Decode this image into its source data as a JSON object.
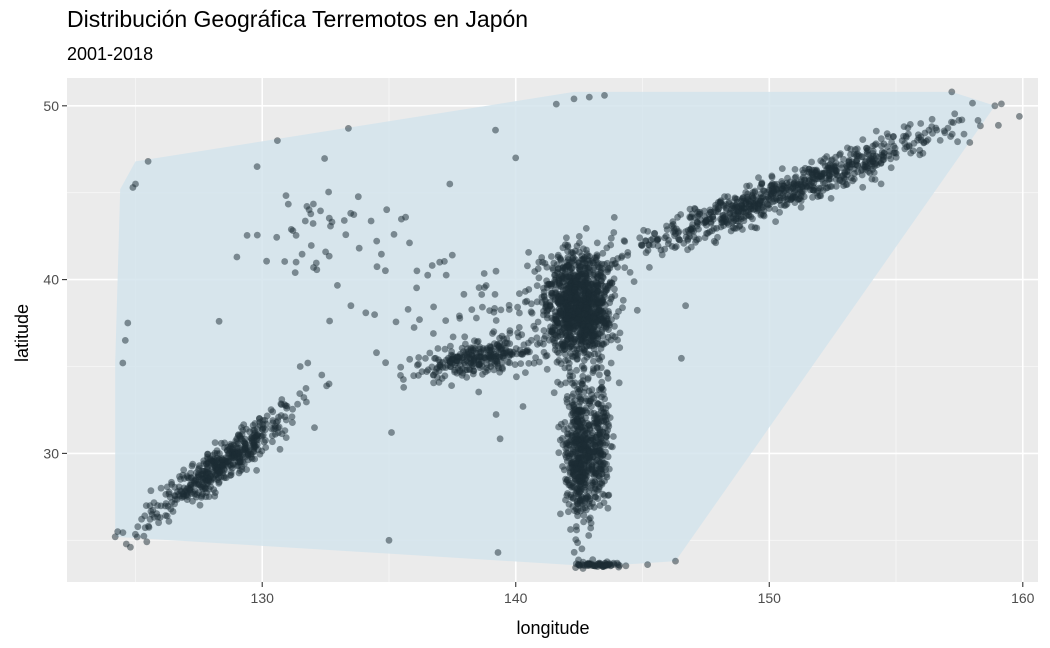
{
  "chart_data": {
    "type": "scatter",
    "title": "Distribución Geográfica Terremotos en Japón",
    "subtitle": "2001-2018",
    "xlabel": "longitude",
    "ylabel": "latitude",
    "xlim": [
      122.3,
      160.6
    ],
    "ylim": [
      22.6,
      51.6
    ],
    "x_ticks": [
      130,
      140,
      150,
      160
    ],
    "y_ticks": [
      30,
      40,
      50
    ],
    "grid": true,
    "point_color": "#1c2b33",
    "point_opacity": 0.5,
    "hull_fill": "#d3e4ec",
    "hull": [
      [
        124.2,
        25.2
      ],
      [
        124.2,
        35.2
      ],
      [
        124.4,
        45.2
      ],
      [
        125.0,
        46.8
      ],
      [
        142.3,
        50.8
      ],
      [
        157.2,
        50.8
      ],
      [
        158.9,
        50.0
      ],
      [
        146.3,
        23.8
      ],
      [
        143.2,
        23.5
      ],
      [
        142.0,
        23.6
      ]
    ],
    "clusters": [
      {
        "center": [
          150.5,
          45.0
        ],
        "spread": [
          7.5,
          0.9
        ],
        "angle": 0.52,
        "count": 750
      },
      {
        "center": [
          142.5,
          38.5
        ],
        "spread": [
          1.3,
          3.0
        ],
        "angle": 0.0,
        "count": 1100
      },
      {
        "center": [
          142.5,
          30.0
        ],
        "spread": [
          0.6,
          4.3
        ],
        "angle": 0.0,
        "count": 450
      },
      {
        "center": [
          143.3,
          30.5
        ],
        "spread": [
          0.5,
          3.8
        ],
        "angle": 0.0,
        "count": 200
      },
      {
        "center": [
          128.5,
          29.5
        ],
        "spread": [
          4.2,
          0.8
        ],
        "angle": 0.85,
        "count": 480
      },
      {
        "center": [
          138.5,
          35.5
        ],
        "spread": [
          2.5,
          0.9
        ],
        "angle": 0.25,
        "count": 250
      },
      {
        "center": [
          139.0,
          37.0
        ],
        "spread": [
          4.5,
          4.5
        ],
        "angle": 0.0,
        "count": 110
      },
      {
        "center": [
          132.0,
          43.0
        ],
        "spread": [
          3.0,
          3.0
        ],
        "angle": 0.0,
        "count": 45
      },
      {
        "center": [
          143.2,
          23.6
        ],
        "spread": [
          0.9,
          0.15
        ],
        "angle": 0.0,
        "count": 60
      }
    ],
    "extra_points": [
      [
        124.5,
        35.2
      ],
      [
        124.6,
        36.5
      ],
      [
        124.7,
        37.5
      ],
      [
        124.9,
        45.3
      ],
      [
        125.0,
        45.5
      ],
      [
        125.5,
        46.8
      ],
      [
        133.4,
        48.7
      ],
      [
        130.6,
        48.0
      ],
      [
        129.8,
        46.5
      ],
      [
        142.9,
        50.5
      ],
      [
        142.3,
        50.4
      ],
      [
        143.5,
        50.6
      ],
      [
        141.6,
        50.1
      ],
      [
        146.3,
        23.8
      ],
      [
        135.0,
        25.0
      ],
      [
        145.2,
        23.6
      ],
      [
        124.2,
        25.2
      ],
      [
        124.3,
        25.5
      ],
      [
        158.9,
        50.0
      ],
      [
        157.2,
        50.8
      ],
      [
        139.2,
        48.6
      ],
      [
        140.0,
        47.0
      ],
      [
        137.4,
        45.5
      ],
      [
        129.0,
        41.3
      ],
      [
        128.3,
        37.6
      ],
      [
        133.5,
        38.5
      ],
      [
        146.7,
        38.5
      ],
      [
        139.3,
        24.3
      ],
      [
        124.8,
        24.6
      ],
      [
        131.5,
        35.0
      ],
      [
        131.8,
        35.2
      ],
      [
        135.1,
        31.2
      ],
      [
        137.0,
        41.0
      ],
      [
        136.1,
        40.5
      ],
      [
        135.2,
        42.6
      ]
    ]
  }
}
